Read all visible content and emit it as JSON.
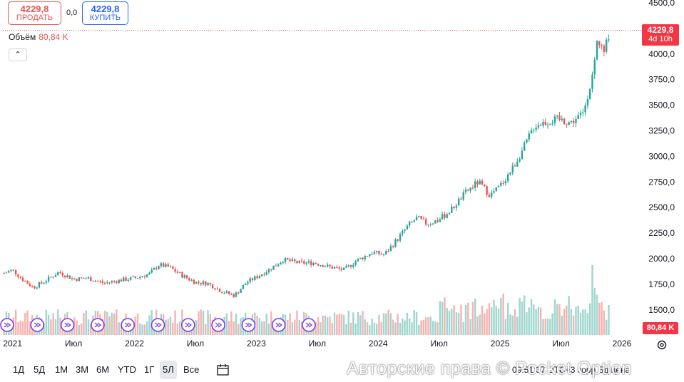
{
  "quote": {
    "sell_value": "4229,8",
    "sell_label": "ПРОДАТЬ",
    "buy_value": "4229,8",
    "buy_label": "КУПИТЬ",
    "spread": "0,0"
  },
  "volume_legend": {
    "label": "Объём",
    "value": "80,84 K"
  },
  "last_price_tag": {
    "price": "4229,8",
    "countdown": "4d 10h"
  },
  "volume_tag": "80,84 K",
  "periods": [
    "1Д",
    "5Д",
    "1М",
    "3М",
    "6М",
    "YTD",
    "1Г",
    "5Л",
    "Все"
  ],
  "active_period": "5Л",
  "watermark": "Авторские права © Pocket Option",
  "time_info": "09:51:37 UTC+3   корр   Бд цена",
  "colors": {
    "up": "#26a69a",
    "down": "#ef5350",
    "up_vol": "#9fd6cf",
    "down_vol": "#f7b2b0",
    "accent": "#7b3fe4"
  },
  "chart_data": {
    "type": "candlestick",
    "title": "",
    "x_tick_labels": [
      "2021",
      "Июл",
      "2022",
      "Июл",
      "2023",
      "Июл",
      "2024",
      "Июл",
      "2025",
      "Июл",
      "2026"
    ],
    "y_tick_labels": [
      "4500,0",
      "4250,0",
      "4000,0",
      "3750,0",
      "3500,0",
      "3250,0",
      "3000,0",
      "2750,0",
      "2500,0",
      "2250,0",
      "2000,0",
      "1750,0",
      "1500,0"
    ],
    "ylim": [
      1450,
      4500
    ],
    "x_range": [
      2020.92,
      2026.0
    ],
    "last_price": 4229.8,
    "series": [
      {
        "t": 2020.93,
        "close": 1860
      },
      {
        "t": 2021.0,
        "close": 1890
      },
      {
        "t": 2021.08,
        "close": 1800
      },
      {
        "t": 2021.17,
        "close": 1720
      },
      {
        "t": 2021.25,
        "close": 1770
      },
      {
        "t": 2021.38,
        "close": 1870
      },
      {
        "t": 2021.5,
        "close": 1800
      },
      {
        "t": 2021.62,
        "close": 1810
      },
      {
        "t": 2021.75,
        "close": 1760
      },
      {
        "t": 2021.88,
        "close": 1790
      },
      {
        "t": 2022.0,
        "close": 1810
      },
      {
        "t": 2022.12,
        "close": 1850
      },
      {
        "t": 2022.2,
        "close": 1940
      },
      {
        "t": 2022.28,
        "close": 1920
      },
      {
        "t": 2022.4,
        "close": 1830
      },
      {
        "t": 2022.5,
        "close": 1770
      },
      {
        "t": 2022.6,
        "close": 1760
      },
      {
        "t": 2022.72,
        "close": 1680
      },
      {
        "t": 2022.82,
        "close": 1640
      },
      {
        "t": 2022.92,
        "close": 1770
      },
      {
        "t": 2023.0,
        "close": 1820
      },
      {
        "t": 2023.1,
        "close": 1890
      },
      {
        "t": 2023.22,
        "close": 1990
      },
      {
        "t": 2023.35,
        "close": 1960
      },
      {
        "t": 2023.48,
        "close": 1960
      },
      {
        "t": 2023.6,
        "close": 1920
      },
      {
        "t": 2023.72,
        "close": 1890
      },
      {
        "t": 2023.82,
        "close": 1980
      },
      {
        "t": 2023.95,
        "close": 2060
      },
      {
        "t": 2024.05,
        "close": 2040
      },
      {
        "t": 2024.15,
        "close": 2180
      },
      {
        "t": 2024.25,
        "close": 2330
      },
      {
        "t": 2024.32,
        "close": 2400
      },
      {
        "t": 2024.4,
        "close": 2340
      },
      {
        "t": 2024.5,
        "close": 2380
      },
      {
        "t": 2024.6,
        "close": 2480
      },
      {
        "t": 2024.72,
        "close": 2650
      },
      {
        "t": 2024.82,
        "close": 2750
      },
      {
        "t": 2024.92,
        "close": 2620
      },
      {
        "t": 2025.0,
        "close": 2710
      },
      {
        "t": 2025.1,
        "close": 2880
      },
      {
        "t": 2025.18,
        "close": 3050
      },
      {
        "t": 2025.28,
        "close": 3300
      },
      {
        "t": 2025.38,
        "close": 3340
      },
      {
        "t": 2025.48,
        "close": 3360
      },
      {
        "t": 2025.58,
        "close": 3330
      },
      {
        "t": 2025.68,
        "close": 3420
      },
      {
        "t": 2025.76,
        "close": 3800
      },
      {
        "t": 2025.8,
        "close": 4150
      },
      {
        "t": 2025.85,
        "close": 4000
      },
      {
        "t": 2025.9,
        "close": 4229.8
      }
    ]
  }
}
